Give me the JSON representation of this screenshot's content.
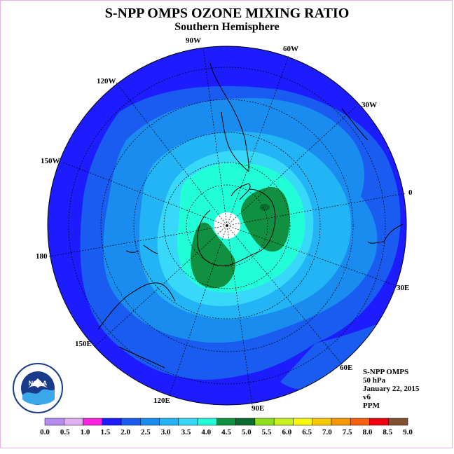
{
  "title": "S-NPP OMPS OZONE MIXING RATIO",
  "subtitle": "Southern Hemisphere",
  "longitude_labels": [
    "90W",
    "60W",
    "30W",
    "0",
    "30E",
    "60E",
    "90E",
    "120E",
    "150E",
    "180",
    "150W",
    "120W"
  ],
  "info": {
    "instrument": "S-NPP OMPS",
    "level": "50 hPa",
    "date": "January 22, 2015",
    "version": "v6",
    "units": "PPM"
  },
  "logo_text": "NOAA",
  "colorbar": {
    "labels": [
      "0.0",
      "0.5",
      "1.0",
      "1.5",
      "2.0",
      "2.5",
      "3.0",
      "3.5",
      "4.0",
      "4.5",
      "5.0",
      "5.5",
      "6.0",
      "6.5",
      "7.0",
      "7.5",
      "8.0",
      "8.5",
      "9.0"
    ],
    "colors": [
      "#b58cf0",
      "#e0b0f0",
      "#ff22e0",
      "#1c1cff",
      "#1a5cf0",
      "#1a8cf0",
      "#22b4f4",
      "#38d8f8",
      "#22ffd8",
      "#109040",
      "#0a6a30",
      "#90e020",
      "#c8f020",
      "#f8f810",
      "#f8c800",
      "#f89800",
      "#f86010",
      "#f00010",
      "#805030"
    ]
  },
  "map": {
    "background_color": "#1c1cff",
    "pole_hole_color": "#ffffff"
  }
}
